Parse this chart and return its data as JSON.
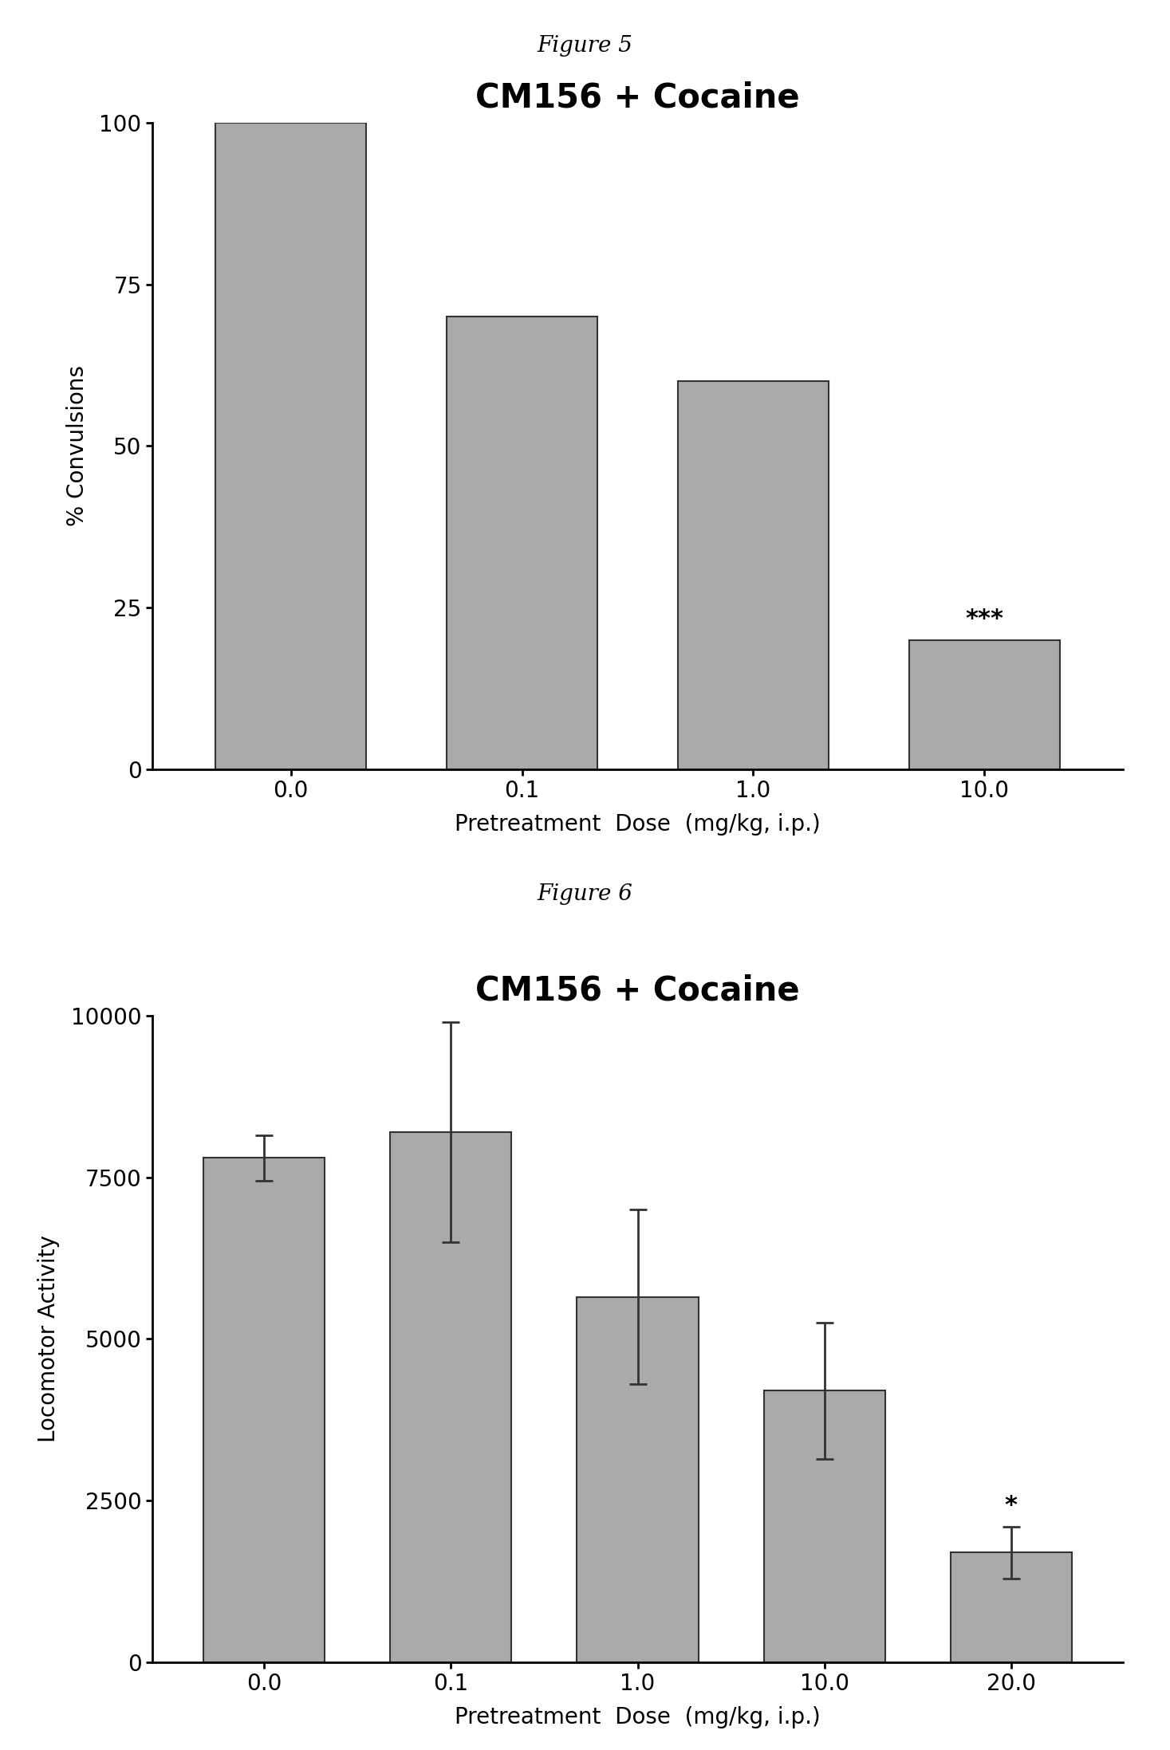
{
  "fig5": {
    "title_fig": "Figure 5",
    "title_chart": "CM156 + Cocaine",
    "categories": [
      "0.0",
      "0.1",
      "1.0",
      "10.0"
    ],
    "values": [
      100,
      70,
      60,
      20
    ],
    "bar_color": "#aaaaaa",
    "bar_edgecolor": "#333333",
    "ylabel": "% Convulsions",
    "xlabel": "Pretreatment  Dose  (mg/kg, i.p.)",
    "ylim": [
      0,
      100
    ],
    "yticks": [
      0,
      25,
      50,
      75,
      100
    ],
    "significance": {
      "index": 3,
      "text": "***"
    }
  },
  "fig6": {
    "title_fig": "Figure 6",
    "title_chart": "CM156 + Cocaine",
    "categories": [
      "0.0",
      "0.1",
      "1.0",
      "10.0",
      "20.0"
    ],
    "values": [
      7800,
      8200,
      5650,
      4200,
      1700
    ],
    "errors": [
      350,
      1700,
      1350,
      1050,
      400
    ],
    "bar_color": "#aaaaaa",
    "bar_edgecolor": "#333333",
    "ylabel": "Locomotor Activity",
    "xlabel": "Pretreatment  Dose  (mg/kg, i.p.)",
    "ylim": [
      0,
      10000
    ],
    "yticks": [
      0,
      2500,
      5000,
      7500,
      10000
    ],
    "significance": {
      "index": 4,
      "text": "*"
    }
  },
  "background_color": "#ffffff",
  "bar_width": 0.65,
  "fig_label_fontsize": 20,
  "chart_title_fontsize": 30,
  "axis_label_fontsize": 20,
  "tick_fontsize": 20,
  "sig_fontsize": 22
}
